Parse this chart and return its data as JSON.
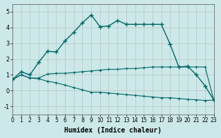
{
  "xlabel": "Humidex (Indice chaleur)",
  "ylabel": "",
  "background_color": "#cce8e8",
  "grid_color": "#aaaaaa",
  "line_color": "#006666",
  "xlim": [
    0,
    23
  ],
  "ylim": [
    -1.5,
    5.5
  ],
  "yticks": [
    -1,
    0,
    1,
    2,
    3,
    4,
    5
  ],
  "xticks": [
    0,
    1,
    2,
    3,
    4,
    5,
    6,
    7,
    8,
    9,
    10,
    11,
    12,
    13,
    14,
    15,
    16,
    17,
    18,
    19,
    20,
    21,
    22,
    23
  ],
  "series1_x": [
    0,
    1,
    2,
    3,
    4,
    5,
    6,
    7,
    8,
    9,
    10,
    11,
    12,
    13,
    14,
    15,
    16,
    17,
    18,
    19,
    20,
    21,
    22,
    23
  ],
  "series1_y": [
    0.7,
    1.2,
    1.0,
    1.8,
    2.5,
    2.45,
    3.15,
    3.7,
    4.3,
    4.8,
    4.05,
    4.1,
    4.45,
    4.2,
    4.2,
    4.2,
    4.2,
    4.2,
    2.95,
    1.5,
    1.55,
    1.0,
    0.3,
    -0.6
  ],
  "series2_x": [
    0,
    1,
    2,
    3,
    4,
    5,
    6,
    7,
    8,
    9,
    10,
    11,
    12,
    13,
    14,
    15,
    16,
    17,
    18,
    19,
    20,
    21,
    22,
    23
  ],
  "series2_y": [
    0.7,
    1.0,
    0.8,
    0.8,
    1.05,
    1.1,
    1.1,
    1.15,
    1.2,
    1.25,
    1.3,
    1.35,
    1.35,
    1.4,
    1.4,
    1.45,
    1.5,
    1.5,
    1.5,
    1.5,
    1.5,
    1.5,
    1.5,
    -0.6
  ],
  "series3_x": [
    0,
    1,
    2,
    3,
    4,
    5,
    6,
    7,
    8,
    9,
    10,
    11,
    12,
    13,
    14,
    15,
    16,
    17,
    18,
    19,
    20,
    21,
    22,
    23
  ],
  "series3_y": [
    0.7,
    1.0,
    0.8,
    0.75,
    0.6,
    0.5,
    0.35,
    0.2,
    0.05,
    -0.1,
    -0.1,
    -0.15,
    -0.2,
    -0.25,
    -0.3,
    -0.35,
    -0.4,
    -0.45,
    -0.45,
    -0.5,
    -0.55,
    -0.58,
    -0.62,
    -0.6
  ]
}
